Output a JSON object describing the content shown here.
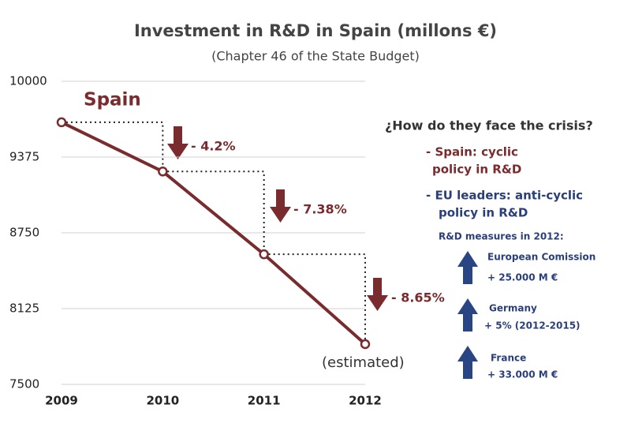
{
  "chart_data": {
    "type": "line",
    "title": "Investment in R&D in Spain (millons €)",
    "subtitle": "(Chapter 46 of the State Budget)",
    "categories": [
      "2009",
      "2010",
      "2011",
      "2012"
    ],
    "series": [
      {
        "name": "Spain",
        "color": "#7a2b2e",
        "values": [
          9662,
          9256,
          8573,
          7832
        ]
      }
    ],
    "ylim": [
      7500,
      10000
    ],
    "yticks": [
      7500,
      8125,
      8750,
      9375,
      10000
    ],
    "grid": true,
    "annotations": [
      "- 4.2%",
      "- 7.38%",
      "- 8.65%",
      "(estimated)"
    ],
    "side_panel": {
      "heading": "¿How do they face the crisis?",
      "points": [
        [
          "- Spain: cyclic",
          "policy in R&D"
        ],
        [
          "- EU leaders: anti-cyclic",
          "policy in R&D"
        ]
      ],
      "measures_title": "R&D measures in 2012:",
      "measures": [
        {
          "name": "European Comission",
          "amount": "+ 25.000 M €"
        },
        {
          "name": "Germany",
          "amount": "+ 5% (2012-2015)"
        },
        {
          "name": "France",
          "amount": "+ 33.000 M €"
        }
      ]
    }
  }
}
